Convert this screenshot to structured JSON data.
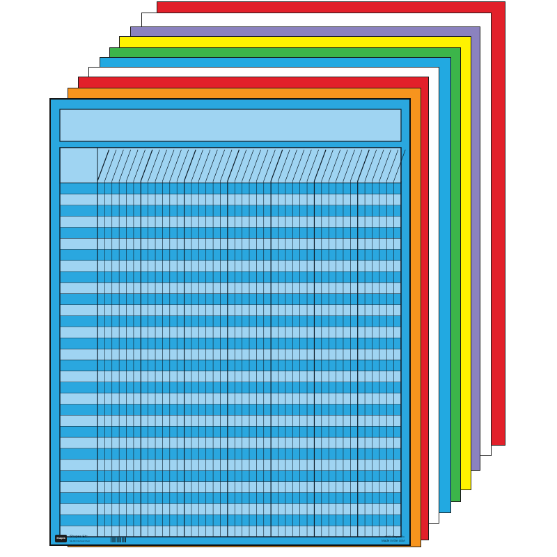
{
  "sheets": [
    {
      "name": "sheet-red-back",
      "color": "#e2202a"
    },
    {
      "name": "sheet-white",
      "color": "#ffffff"
    },
    {
      "name": "sheet-purple",
      "color": "#8b82bf"
    },
    {
      "name": "sheet-yellow",
      "color": "#fff200"
    },
    {
      "name": "sheet-green",
      "color": "#3cb54a"
    },
    {
      "name": "sheet-blue",
      "color": "#22a9e1"
    },
    {
      "name": "sheet-white-front",
      "color": "#ffffff"
    },
    {
      "name": "sheet-red-front",
      "color": "#e2202a"
    },
    {
      "name": "sheet-orange",
      "color": "#f7941d"
    }
  ],
  "front_chart": {
    "colors": {
      "border": "#2aa7df",
      "light_row": "#9fd4f2",
      "dark_row": "#2aa7df",
      "line": "#0d1b26"
    },
    "rows": 32,
    "column_groups": 7,
    "columns_per_group": 6
  },
  "footer": {
    "logo_text": "Shapes",
    "brand": "Shapes Etc.",
    "small_print_left": "SE-904 Vertical Chart",
    "copyright": "#2002 Shapes Etc.",
    "made_in": "Made in the USA"
  }
}
